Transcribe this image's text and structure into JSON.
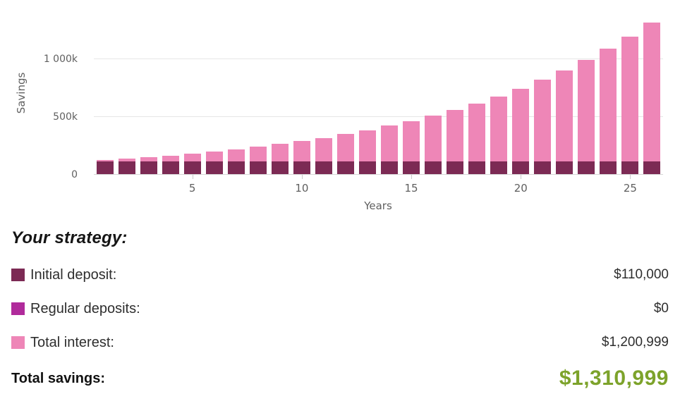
{
  "chart_data": {
    "type": "bar",
    "stacked": true,
    "title": "",
    "xlabel": "Years",
    "ylabel": "Savings",
    "x": [
      1,
      2,
      3,
      4,
      5,
      6,
      7,
      8,
      9,
      10,
      11,
      12,
      13,
      14,
      15,
      16,
      17,
      18,
      19,
      20,
      21,
      22,
      23,
      24,
      25,
      26
    ],
    "series": [
      {
        "name": "Initial deposit",
        "color": "#7c2a54",
        "values": [
          110000,
          110000,
          110000,
          110000,
          110000,
          110000,
          110000,
          110000,
          110000,
          110000,
          110000,
          110000,
          110000,
          110000,
          110000,
          110000,
          110000,
          110000,
          110000,
          110000,
          110000,
          110000,
          110000,
          110000,
          110000,
          110000
        ]
      },
      {
        "name": "Total interest",
        "color": "#ee86b7",
        "values": [
          11000,
          23100,
          36410,
          51051,
          67156,
          84872,
          104359,
          125795,
          149374,
          175312,
          203843,
          235227,
          269750,
          307725,
          349497,
          395447,
          445992,
          501591,
          562750,
          630025,
          704027,
          785430,
          874973,
          973470,
          1081817,
          1200999
        ]
      }
    ],
    "totals": [
      121000,
      133100,
      146410,
      161051,
      177156,
      194872,
      214359,
      235795,
      259374,
      285312,
      313843,
      345227,
      379750,
      417725,
      459497,
      505447,
      555992,
      611591,
      672750,
      740025,
      814027,
      895430,
      984973,
      1083470,
      1191817,
      1310999
    ],
    "ylim": [
      0,
      1350000
    ],
    "ytick_labels": {
      "v0": "0",
      "v500": "500k",
      "v1000": "1 000k"
    },
    "xticks": [
      5,
      10,
      15,
      20,
      25
    ],
    "grid": "horizontal"
  },
  "strategy": {
    "heading": "Your strategy:",
    "rows": [
      {
        "label": "Initial deposit:",
        "value": "$110,000",
        "color": "#7c2a54"
      },
      {
        "label": "Regular deposits:",
        "value": "$0",
        "color": "#b02b9b"
      },
      {
        "label": "Total interest:",
        "value": "$1,200,999",
        "color": "#ee86b7"
      }
    ],
    "total": {
      "label": "Total savings:",
      "value": "$1,310,999",
      "color": "#7da32b"
    }
  }
}
